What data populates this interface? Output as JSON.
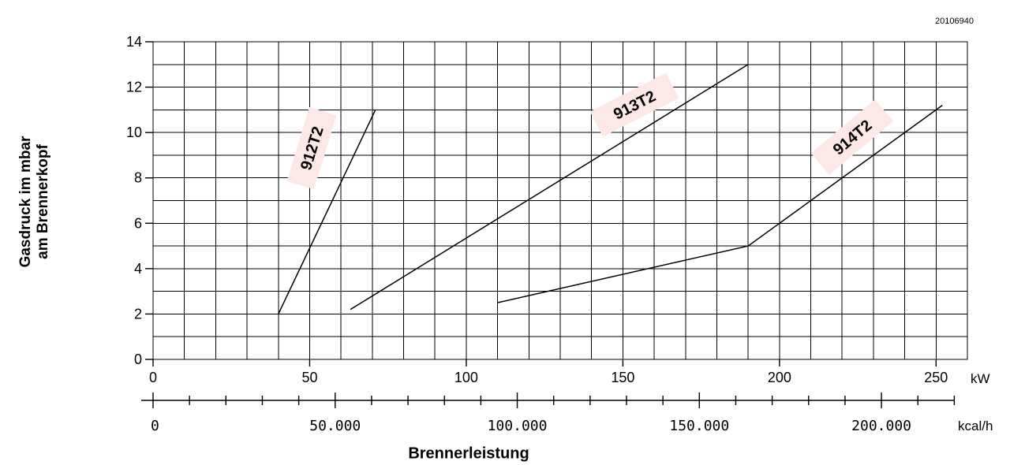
{
  "doc_id": "20106940",
  "chart_data": {
    "type": "line",
    "title": "",
    "xlabel": "Brennerleistung",
    "ylabel_lines": [
      "Gasdruck im  mbar",
      "am Brennerkopf"
    ],
    "x_unit_primary": "kW",
    "x_unit_secondary": "kcal/h",
    "xlim": [
      0,
      260
    ],
    "ylim": [
      0,
      14
    ],
    "x_ticks": [
      0,
      50,
      100,
      150,
      200,
      250
    ],
    "x_tick_labels": [
      "0",
      "50",
      "100",
      "150",
      "200",
      "250"
    ],
    "x2_ticks_kcal": [
      0,
      50000,
      100000,
      150000,
      200000
    ],
    "x2_tick_labels": [
      "0",
      "50.000",
      "100.000",
      "150.000",
      "200.000"
    ],
    "y_ticks": [
      0,
      2,
      4,
      6,
      8,
      10,
      12,
      14
    ],
    "y_tick_labels": [
      "0",
      "2",
      "4",
      "6",
      "8",
      "10",
      "12",
      "14"
    ],
    "grid": true,
    "series": [
      {
        "name": "912T2",
        "x": [
          40,
          71
        ],
        "y": [
          2,
          11
        ]
      },
      {
        "name": "913T2",
        "x": [
          63,
          190
        ],
        "y": [
          2.2,
          13
        ]
      },
      {
        "name": "914T2",
        "x": [
          110,
          190,
          252
        ],
        "y": [
          2.5,
          5,
          11.2
        ]
      }
    ],
    "label_bg_color": "#fde8e8"
  }
}
